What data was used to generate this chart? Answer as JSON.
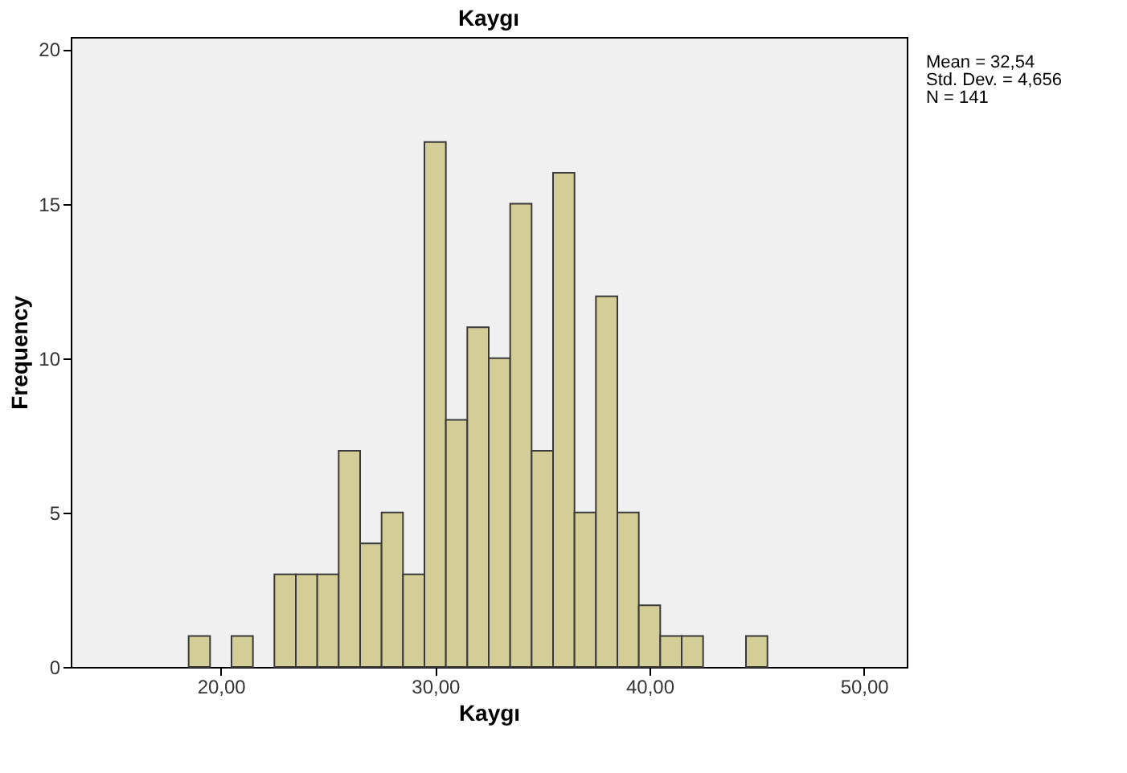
{
  "chart_data": {
    "type": "histogram",
    "title": "Kaygı",
    "xlabel": "Kaygı",
    "ylabel": "Frequency",
    "bins": [
      18.5,
      19.5,
      20.5,
      21.5,
      22.5,
      23.5,
      24.5,
      25.5,
      26.5,
      27.5,
      28.5,
      29.5,
      30.5,
      31.5,
      32.5,
      33.5,
      34.5,
      35.5,
      36.5,
      37.5,
      38.5,
      39.5,
      40.5,
      41.5,
      42.5,
      43.5,
      44.5,
      45.5
    ],
    "values": [
      1,
      0,
      1,
      0,
      3,
      3,
      3,
      7,
      4,
      5,
      3,
      17,
      8,
      11,
      10,
      15,
      7,
      16,
      5,
      12,
      5,
      2,
      1,
      1,
      0,
      0,
      1
    ],
    "color": "#d3ce97",
    "xlim": [
      13,
      52
    ],
    "xticks": [
      {
        "value": 20,
        "label": "20,00"
      },
      {
        "value": 30,
        "label": "30,00"
      },
      {
        "value": 40,
        "label": "40,00"
      },
      {
        "value": 50,
        "label": "50,00"
      }
    ],
    "ylim": [
      0,
      20.4
    ],
    "yticks": [
      0,
      5,
      10,
      15,
      20
    ],
    "grid": false,
    "annotations": [
      "Mean = 32,54",
      "Std. Dev. = 4,656",
      "N = 141"
    ]
  }
}
